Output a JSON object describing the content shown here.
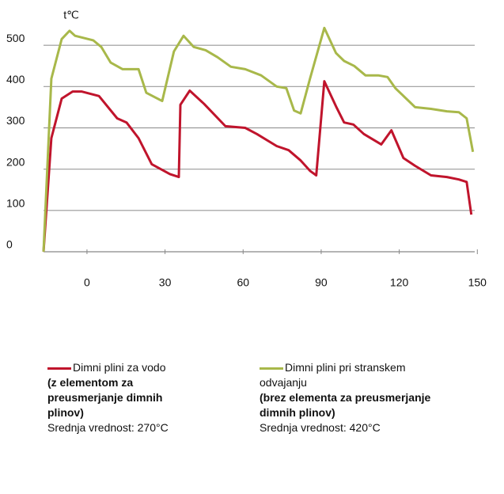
{
  "chart_data": {
    "type": "line",
    "y_label": "t℃",
    "xlim": [
      -16.7,
      149
    ],
    "xticks": [
      0,
      30,
      60,
      90,
      120,
      150
    ],
    "ylim": [
      0,
      600
    ],
    "yticks": [
      0,
      100,
      200,
      300,
      400,
      500
    ],
    "grid": true,
    "series": [
      {
        "name": "Dimni plini za vodo",
        "description": "(z elementom za preusmerjanje dimnih plinov)",
        "mean": "Srednja vrednost: 270°C",
        "color": "#c0142c",
        "x": [
          -16.7,
          -13.7,
          -9.7,
          -5.5,
          -2.1,
          4.6,
          11.6,
          15.2,
          19.8,
          24.9,
          31.9,
          35.3,
          35.9,
          39.5,
          45.0,
          53.2,
          60.8,
          65.3,
          72.9,
          77.5,
          82.1,
          85.7,
          88.1,
          91.2,
          95.7,
          98.8,
          102.4,
          106.4,
          113.1,
          117.0,
          121.6,
          126.1,
          132.2,
          138.3,
          142.9,
          145.9,
          147.7
        ],
        "values": [
          0,
          275,
          371,
          388,
          388,
          377,
          323,
          313,
          275,
          212,
          188,
          181,
          356,
          390,
          358,
          304,
          300,
          285,
          256,
          246,
          221,
          196,
          185,
          413,
          352,
          313,
          308,
          285,
          260,
          294,
          227,
          208,
          185,
          181,
          175,
          169,
          90
        ]
      },
      {
        "name": "Dimni plini pri stranskem odvajanju",
        "description": "(brez elementa za preusmerjanje dimnih plinov)",
        "mean": "Srednja vrednost: 420°C",
        "color": "#a8b84a",
        "x": [
          -16.7,
          -13.7,
          -9.7,
          -6.7,
          -4.6,
          2.4,
          5.5,
          9.1,
          13.7,
          19.8,
          22.8,
          28.9,
          33.4,
          37.1,
          41.0,
          45.6,
          50.2,
          55.3,
          60.8,
          66.9,
          72.9,
          76.6,
          79.6,
          82.1,
          85.7,
          91.2,
          95.7,
          98.8,
          102.7,
          107.0,
          111.9,
          115.5,
          118.5,
          126.1,
          132.2,
          138.3,
          142.9,
          145.9,
          148.3
        ],
        "values": [
          0,
          419,
          515,
          535,
          523,
          512,
          496,
          458,
          442,
          442,
          385,
          365,
          485,
          523,
          496,
          488,
          471,
          448,
          442,
          427,
          400,
          396,
          342,
          335,
          419,
          542,
          481,
          462,
          450,
          427,
          427,
          423,
          396,
          350,
          346,
          340,
          338,
          323,
          242
        ]
      }
    ]
  }
}
